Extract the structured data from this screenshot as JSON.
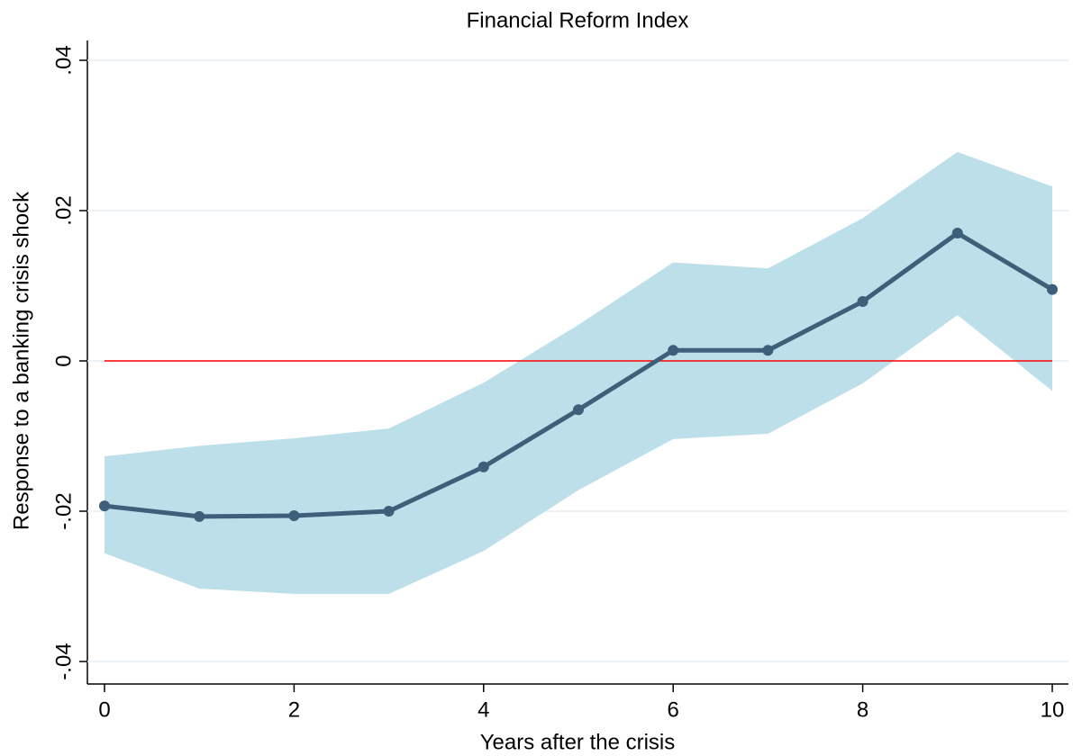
{
  "chart_data": {
    "type": "line",
    "title": "Financial Reform Index",
    "x_label": "Years after the crisis",
    "y_label": "Response to a banking crisis shock",
    "x": [
      0,
      1,
      2,
      3,
      4,
      5,
      6,
      7,
      8,
      9,
      10
    ],
    "series": [
      {
        "color": "#3e5f7a",
        "band_color": "#bddfe9",
        "values": [
          -0.0193,
          -0.0207,
          -0.0206,
          -0.02,
          -0.0141,
          -0.0065,
          0.0014,
          0.0014,
          0.0079,
          0.017,
          0.0095
        ],
        "upper": [
          -0.0127,
          -0.0113,
          -0.0103,
          -0.009,
          -0.0029,
          0.0048,
          0.0131,
          0.0123,
          0.019,
          0.0278,
          0.0232
        ],
        "lower": [
          -0.0256,
          -0.0303,
          -0.031,
          -0.031,
          -0.0253,
          -0.0172,
          -0.0104,
          -0.0097,
          -0.003,
          0.0061,
          -0.004
        ]
      }
    ],
    "reference_line": {
      "value": 0,
      "color": "#ff0000"
    },
    "xlim": [
      0,
      10
    ],
    "xticks": [
      0,
      2,
      4,
      6,
      8,
      10
    ],
    "ylim": [
      -0.04,
      0.04
    ],
    "yticks": [
      {
        "value": -0.04,
        "label": "-.04"
      },
      {
        "value": -0.02,
        "label": "-.02"
      },
      0,
      {
        "value": 0.02,
        "label": ".02"
      },
      {
        "value": 0.04,
        "label": ".04"
      }
    ],
    "grid": true,
    "grid_color": "#e6eef2"
  }
}
